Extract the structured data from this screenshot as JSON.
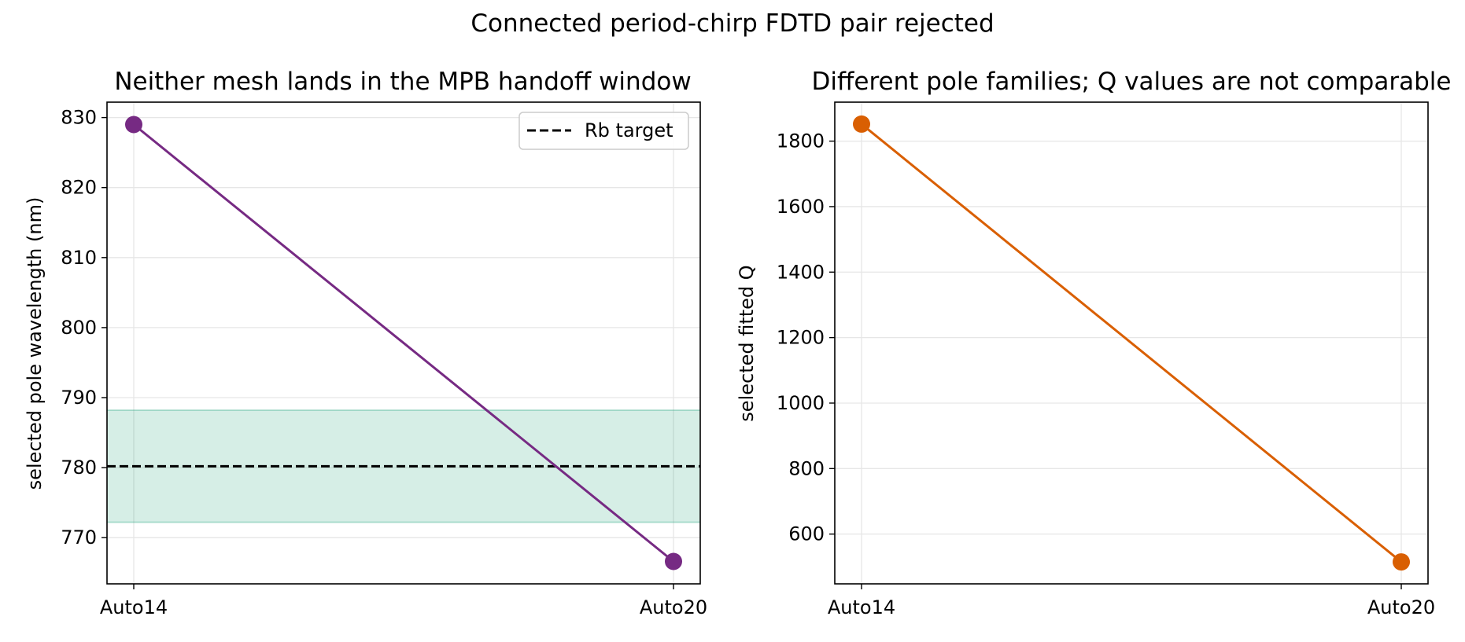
{
  "figure": {
    "suptitle": "Connected period-chirp FDTD pair rejected"
  },
  "chart_data": [
    {
      "type": "line",
      "title": "Neither mesh lands in the MPB handoff window",
      "xlabel": "",
      "ylabel": "selected pole wavelength (nm)",
      "categories": [
        "Auto14",
        "Auto20"
      ],
      "series": [
        {
          "values": [
            829.0,
            766.6
          ],
          "color": "#762a83",
          "marker": "circle"
        }
      ],
      "ylim": [
        763.4,
        832.2
      ],
      "yticks": [
        770,
        780,
        790,
        800,
        810,
        820,
        830
      ],
      "grid": true,
      "reference_line": {
        "name": "Rb target",
        "value": 780.2,
        "style": "dashed",
        "color": "#000000"
      },
      "band": {
        "range": [
          772.2,
          788.2
        ],
        "color": "#1b9e77",
        "opacity": 0.18
      },
      "legend": {
        "placement": "upper right",
        "entries": [
          "Rb target"
        ]
      }
    },
    {
      "type": "line",
      "title": "Different pole families; Q values are not comparable",
      "xlabel": "",
      "ylabel": "selected fitted Q",
      "categories": [
        "Auto14",
        "Auto20"
      ],
      "series": [
        {
          "values": [
            1852,
            515
          ],
          "color": "#d95f02",
          "marker": "circle"
        }
      ],
      "ylim": [
        448,
        1919
      ],
      "yticks": [
        600,
        800,
        1000,
        1200,
        1400,
        1600,
        1800
      ],
      "grid": true
    }
  ]
}
